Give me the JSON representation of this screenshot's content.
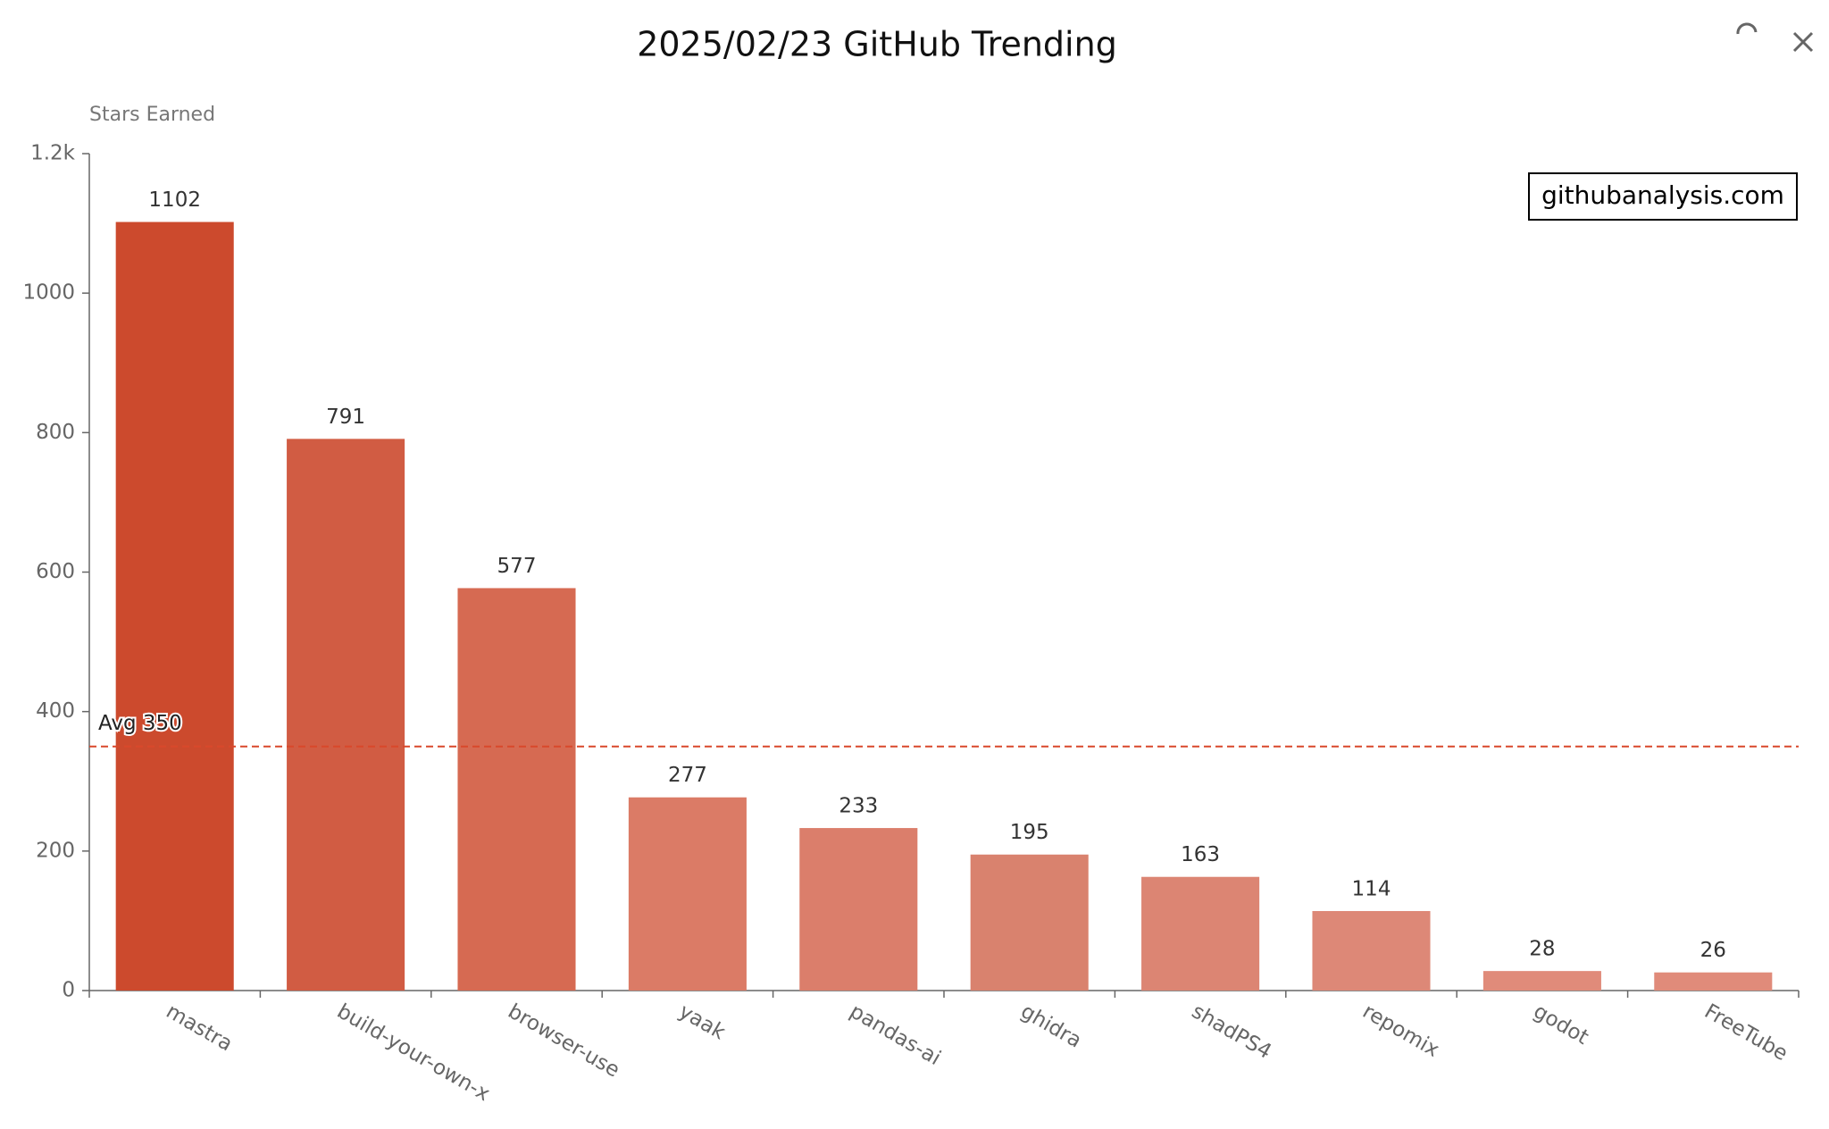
{
  "chart_data": {
    "type": "bar",
    "title": "2025/02/23 GitHub Trending",
    "y_axis_label": "Stars Earned",
    "categories": [
      "mastra",
      "build-your-own-x",
      "browser-use",
      "yaak",
      "pandas-ai",
      "ghidra",
      "shadPS4",
      "repomix",
      "godot",
      "FreeTube"
    ],
    "values": [
      1102,
      791,
      577,
      277,
      233,
      195,
      163,
      114,
      28,
      26
    ],
    "colors": [
      "#cc4a2d",
      "#d15c43",
      "#d66a52",
      "#db7b66",
      "#db7e6b",
      "#d9826e",
      "#dc8573",
      "#dd8877",
      "#e08b7a",
      "#e08b7a"
    ],
    "ylim": [
      0,
      1200
    ],
    "yticks": [
      0,
      200,
      400,
      600,
      800,
      1000,
      {
        "value": 1200,
        "label": "1.2k"
      }
    ],
    "average_line": {
      "value": 350,
      "label": "Avg 350",
      "color": "#d9482b"
    },
    "watermark": "githubanalysis.com"
  }
}
